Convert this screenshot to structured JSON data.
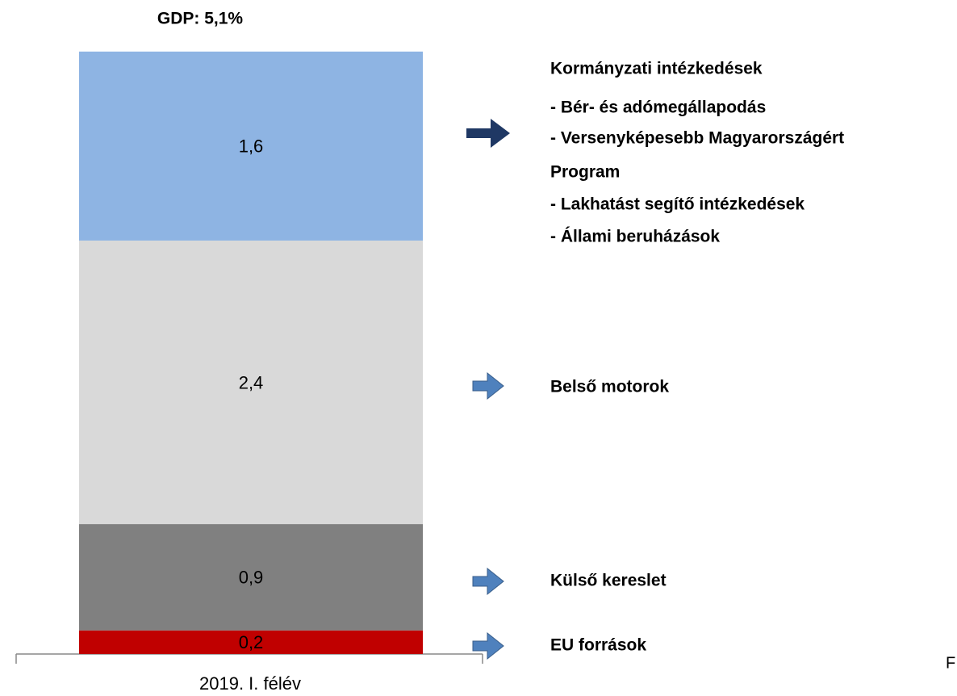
{
  "chart_data": {
    "type": "stacked_bar",
    "title": "GDP: 5,1%",
    "categories": [
      "2019. I. félév"
    ],
    "series": [
      {
        "name": "EU források",
        "color": "#c00000",
        "values": [
          0.2
        ],
        "value_labels": [
          "0,2"
        ]
      },
      {
        "name": "Külső kereslet",
        "color": "#808080",
        "values": [
          0.9
        ],
        "value_labels": [
          "0,9"
        ]
      },
      {
        "name": "Belső motorok",
        "color": "#d9d9d9",
        "values": [
          2.4
        ],
        "value_labels": [
          "2,4"
        ]
      },
      {
        "name": "Kormányzati intézkedések",
        "color": "#8eb4e3",
        "values": [
          1.6
        ],
        "value_labels": [
          "1,6"
        ]
      }
    ],
    "notes": [
      "- Bér- és adómegállapodás",
      "- Versenyképesebb Magyarországért",
      "Program",
      "- Lakhatást segítő intézkedések",
      "- Állami beruházások"
    ],
    "footer": "F"
  }
}
